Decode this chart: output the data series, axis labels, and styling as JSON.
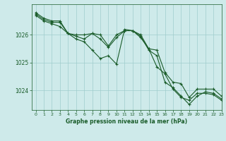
{
  "background_color": "#ceeaea",
  "grid_color": "#a0cccc",
  "line_color": "#1a5c2a",
  "title": "Graphe pression niveau de la mer (hPa)",
  "xlim": [
    -0.5,
    23
  ],
  "ylim": [
    1023.3,
    1027.1
  ],
  "yticks": [
    1024,
    1025,
    1026
  ],
  "xticks": [
    0,
    1,
    2,
    3,
    4,
    5,
    6,
    7,
    8,
    9,
    10,
    11,
    12,
    13,
    14,
    15,
    16,
    17,
    18,
    19,
    20,
    21,
    22,
    23
  ],
  "series": [
    [
      1026.75,
      1026.55,
      1026.45,
      1026.45,
      1026.05,
      1025.95,
      1025.85,
      1026.05,
      1025.85,
      1025.55,
      1025.9,
      1026.15,
      1026.15,
      1025.9,
      1025.5,
      1025.45,
      1024.65,
      1024.3,
      1024.25,
      1023.75,
      1024.05,
      1024.05,
      1024.05,
      1023.8
    ],
    [
      1026.7,
      1026.5,
      1026.4,
      1026.3,
      1026.05,
      1026.0,
      1026.0,
      1026.05,
      1026.0,
      1025.6,
      1026.0,
      1026.15,
      1026.15,
      1026.0,
      1025.5,
      1024.85,
      1024.6,
      1024.05,
      1023.75,
      1023.65,
      1023.9,
      1023.9,
      1023.85,
      1023.65
    ],
    [
      1026.8,
      1026.6,
      1026.5,
      1026.5,
      1026.05,
      1025.85,
      1025.75,
      1025.45,
      1025.15,
      1025.25,
      1024.95,
      1026.2,
      1026.15,
      1025.95,
      1025.45,
      1025.25,
      1024.3,
      1024.1,
      1023.8,
      1023.5,
      1023.8,
      1023.95,
      1023.9,
      1023.7
    ]
  ]
}
